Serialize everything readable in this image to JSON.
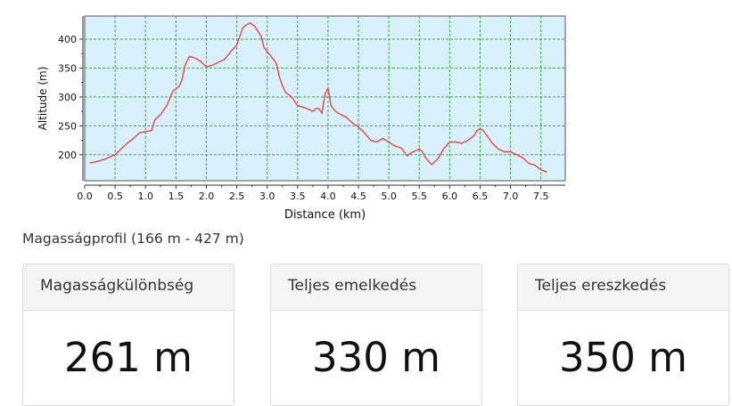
{
  "chart_data": {
    "type": "line",
    "xlabel": "Distance (km)",
    "ylabel": "Altitude (m)",
    "xlim": [
      0,
      7.9
    ],
    "ylim": [
      155,
      440
    ],
    "xticks": [
      "0.0",
      "0.5",
      "1.0",
      "1.5",
      "2.0",
      "2.5",
      "3.0",
      "3.5",
      "4.0",
      "4.5",
      "5.0",
      "5.5",
      "6.0",
      "6.5",
      "7.0",
      "7.5"
    ],
    "yticks": [
      "200",
      "250",
      "300",
      "350",
      "400"
    ],
    "grid": true,
    "colors": {
      "line": "#ee4444",
      "plot_bg": "#d9f0fd",
      "grid": "#3aa83a"
    },
    "series": [
      {
        "x": [
          0.08,
          0.2,
          0.35,
          0.5,
          0.6,
          0.7,
          0.8,
          0.9,
          1.0,
          1.1,
          1.15,
          1.25,
          1.35,
          1.45,
          1.55,
          1.6,
          1.65,
          1.72,
          1.8,
          1.9,
          2.0,
          2.1,
          2.2,
          2.3,
          2.4,
          2.5,
          2.55,
          2.6,
          2.65,
          2.72,
          2.8,
          2.9,
          2.95,
          3.05,
          3.15,
          3.2,
          3.25,
          3.3,
          3.4,
          3.5,
          3.6,
          3.7,
          3.75,
          3.8,
          3.85,
          3.9,
          3.95,
          4.0,
          4.05,
          4.1,
          4.15,
          4.2,
          4.3,
          4.4,
          4.5,
          4.6,
          4.7,
          4.8,
          4.9,
          5.0,
          5.1,
          5.2,
          5.3,
          5.35,
          5.4,
          5.5,
          5.55,
          5.6,
          5.7,
          5.8,
          5.9,
          6.0,
          6.1,
          6.2,
          6.3,
          6.4,
          6.45,
          6.5,
          6.55,
          6.6,
          6.7,
          6.8,
          6.9,
          7.0,
          7.1,
          7.2,
          7.3,
          7.4,
          7.5,
          7.6
        ],
        "y": [
          186,
          188,
          193,
          200,
          210,
          220,
          228,
          238,
          240,
          242,
          260,
          270,
          285,
          310,
          318,
          330,
          355,
          370,
          368,
          362,
          352,
          355,
          360,
          365,
          378,
          390,
          405,
          420,
          424,
          428,
          422,
          405,
          385,
          372,
          358,
          335,
          320,
          308,
          300,
          285,
          282,
          278,
          275,
          280,
          280,
          272,
          305,
          315,
          285,
          278,
          273,
          270,
          265,
          255,
          248,
          238,
          225,
          222,
          228,
          222,
          215,
          212,
          198,
          202,
          205,
          210,
          205,
          195,
          183,
          192,
          210,
          222,
          222,
          220,
          225,
          233,
          242,
          245,
          242,
          235,
          220,
          210,
          205,
          205,
          200,
          195,
          185,
          182,
          174,
          170
        ]
      }
    ]
  },
  "caption": "Magasságprofil (166 m - 427 m)",
  "cards": [
    {
      "title": "Magasságkülönbség",
      "value": "261 m"
    },
    {
      "title": "Teljes emelkedés",
      "value": "330 m"
    },
    {
      "title": "Teljes ereszkedés",
      "value": "350 m"
    }
  ]
}
